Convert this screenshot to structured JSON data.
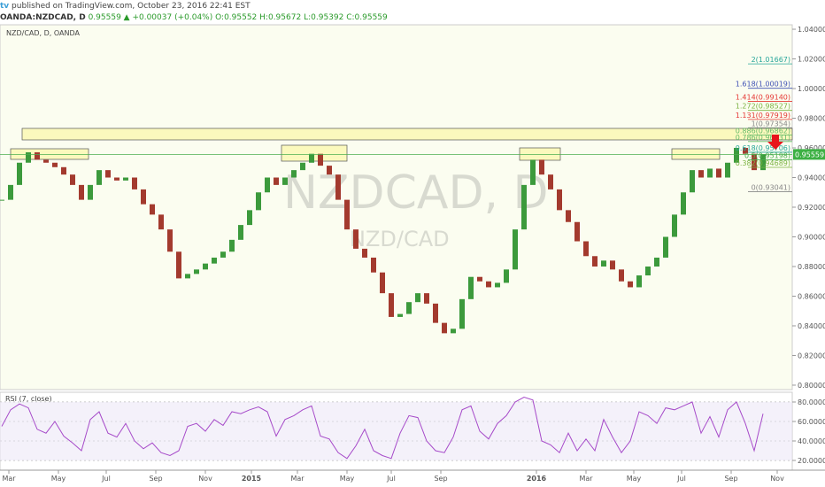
{
  "header": {
    "publisher": "published on TradingView.com, October 23, 2016 22:41 EST",
    "symbol": "OANDA:NZDCAD, D",
    "last": "0.95559",
    "change": "▲ +0.00037 (+0.04%)",
    "open": "O:0.95552",
    "high": "H:0.95672",
    "low": "L:0.95392",
    "close": "C:0.95559"
  },
  "chart_data": [
    {
      "type": "candlestick",
      "title": "NZD/CAD, D, OANDA",
      "watermark": "NZDCAD, D",
      "watermark_sub": "NZD/CAD",
      "xlim": [
        0,
        88
      ],
      "xticks": [
        {
          "value": 0.8,
          "label": "Mar"
        },
        {
          "value": 6.4,
          "label": "May"
        },
        {
          "value": 11.8,
          "label": "Jul"
        },
        {
          "value": 17.4,
          "label": "Sep"
        },
        {
          "value": 23,
          "label": "Nov"
        },
        {
          "value": 28.2,
          "label": "2015"
        },
        {
          "value": 33.4,
          "label": "Mar"
        },
        {
          "value": 39,
          "label": "May"
        },
        {
          "value": 44,
          "label": "Jul"
        },
        {
          "value": 49.6,
          "label": "Sep"
        },
        {
          "value": 60.4,
          "label": "2016"
        },
        {
          "value": 66,
          "label": "Mar"
        },
        {
          "value": 71.4,
          "label": "May"
        },
        {
          "value": 76.8,
          "label": "Jul"
        },
        {
          "value": 82.4,
          "label": "Sep"
        },
        {
          "value": 87.6,
          "label": "Nov"
        }
      ],
      "ylim": [
        0.797,
        1.043
      ],
      "yticks": [
        {
          "value": 0.8,
          "label": "0.80000"
        },
        {
          "value": 0.82,
          "label": "0.82000"
        },
        {
          "value": 0.84,
          "label": "0.84000"
        },
        {
          "value": 0.86,
          "label": "0.86000"
        },
        {
          "value": 0.88,
          "label": "0.88000"
        },
        {
          "value": 0.9,
          "label": "0.90000"
        },
        {
          "value": 0.92,
          "label": "0.92000"
        },
        {
          "value": 0.94,
          "label": "0.94000"
        },
        {
          "value": 0.96,
          "label": "0.96000"
        },
        {
          "value": 0.98,
          "label": "0.98000"
        },
        {
          "value": 1.0,
          "label": "1.00000"
        },
        {
          "value": 1.02,
          "label": "1.02000"
        },
        {
          "value": 1.04,
          "label": "1.04000"
        }
      ],
      "values": [
        0.925,
        0.935,
        0.95,
        0.957,
        0.952,
        0.95,
        0.947,
        0.942,
        0.935,
        0.925,
        0.935,
        0.945,
        0.94,
        0.938,
        0.94,
        0.932,
        0.922,
        0.915,
        0.905,
        0.89,
        0.872,
        0.875,
        0.878,
        0.882,
        0.886,
        0.89,
        0.898,
        0.908,
        0.918,
        0.93,
        0.94,
        0.935,
        0.94,
        0.945,
        0.95,
        0.956,
        0.948,
        0.942,
        0.925,
        0.905,
        0.892,
        0.886,
        0.876,
        0.862,
        0.846,
        0.848,
        0.856,
        0.862,
        0.855,
        0.842,
        0.835,
        0.838,
        0.858,
        0.873,
        0.87,
        0.866,
        0.869,
        0.878,
        0.905,
        0.935,
        0.952,
        0.942,
        0.932,
        0.918,
        0.91,
        0.897,
        0.887,
        0.88,
        0.884,
        0.878,
        0.87,
        0.866,
        0.874,
        0.88,
        0.886,
        0.9,
        0.915,
        0.93,
        0.945,
        0.94,
        0.946,
        0.94,
        0.95,
        0.96,
        0.956,
        0.945,
        0.9556
      ],
      "up_color": "#3c9a3c",
      "down_color": "#a33a2e",
      "last_price": {
        "value": 0.95559,
        "label": "0.95559"
      },
      "fib": [
        {
          "value": 1.01667,
          "label": "2(1.01667)",
          "color": "#26a69a"
        },
        {
          "value": 1.00019,
          "label": "1.618(1.00019)",
          "color": "#3f51b5"
        },
        {
          "value": 0.9914,
          "label": "1.414(0.99140)",
          "color": "#e53935"
        },
        {
          "value": 0.98527,
          "label": "1.272(0.98527)",
          "color": "#7cb342"
        },
        {
          "value": 0.97919,
          "label": "1.131(0.97919)",
          "color": "#e53935"
        },
        {
          "value": 0.97354,
          "label": "1(0.97354)",
          "color": "#888888"
        },
        {
          "value": 0.96862,
          "label": "0.886(0.96862)",
          "color": "#66bb6a"
        },
        {
          "value": 0.96431,
          "label": "0.786(0.96431)",
          "color": "#66bb6a"
        },
        {
          "value": 0.95706,
          "label": "0.618(0.95706)",
          "color": "#26a69a"
        },
        {
          "value": 0.95198,
          "label": "0.5(0.95198)",
          "color": "#4caf50"
        },
        {
          "value": 0.94689,
          "label": "0.382(0.94689)",
          "color": "#7cb342"
        },
        {
          "value": 0.93041,
          "label": "0(0.93041)",
          "color": "#888888"
        }
      ]
    },
    {
      "type": "line",
      "title": "RSI (7, close)",
      "color": "#a64ac9",
      "xlim": [
        0,
        88
      ],
      "ylim": [
        10,
        90
      ],
      "yticks": [
        {
          "value": 20,
          "label": "20.0000"
        },
        {
          "value": 40,
          "label": "40.0000"
        },
        {
          "value": 60,
          "label": "60.0000"
        },
        {
          "value": 80,
          "label": "80.0000"
        }
      ],
      "values": [
        55,
        72,
        78,
        74,
        52,
        48,
        60,
        45,
        38,
        30,
        62,
        70,
        48,
        44,
        58,
        40,
        32,
        38,
        28,
        25,
        30,
        55,
        58,
        50,
        62,
        56,
        70,
        68,
        72,
        75,
        70,
        45,
        62,
        66,
        72,
        76,
        45,
        42,
        28,
        22,
        35,
        52,
        30,
        25,
        22,
        48,
        66,
        64,
        40,
        30,
        28,
        44,
        72,
        76,
        50,
        42,
        58,
        66,
        80,
        85,
        82,
        40,
        36,
        28,
        48,
        30,
        42,
        30,
        62,
        44,
        28,
        40,
        70,
        66,
        58,
        74,
        72,
        76,
        80,
        48,
        65,
        44,
        72,
        80,
        58,
        30,
        68
      ]
    }
  ]
}
